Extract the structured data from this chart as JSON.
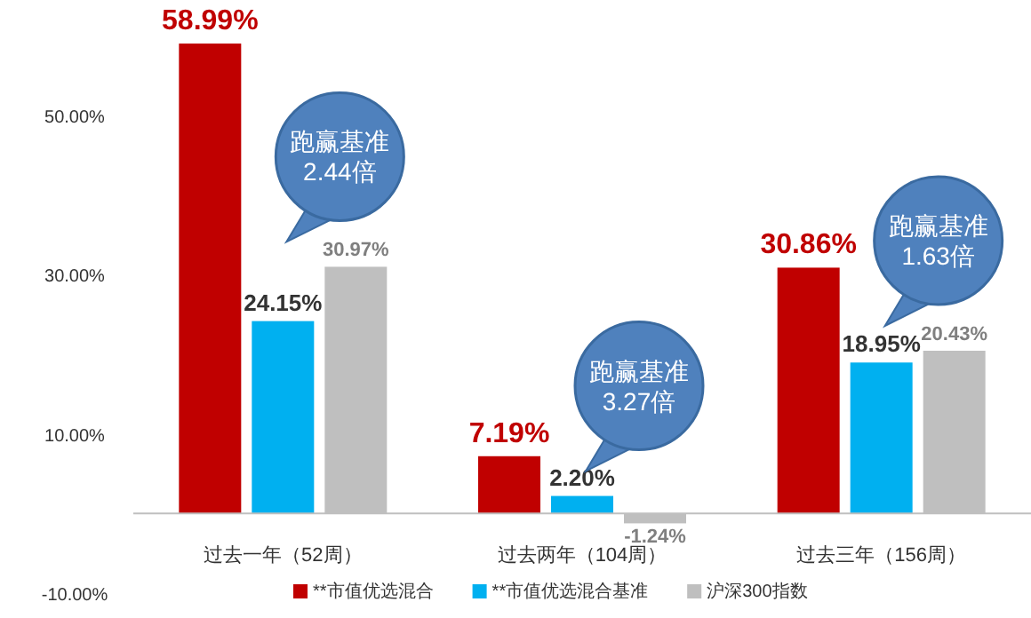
{
  "chart_data": {
    "type": "bar",
    "categories": [
      "过去一年（52周）",
      "过去两年（104周）",
      "过去三年（156周）"
    ],
    "series": [
      {
        "name": "**市值优选混合",
        "color": "#c00000",
        "values": [
          58.99,
          7.19,
          30.86
        ],
        "value_labels": [
          "58.99%",
          "7.19%",
          "30.86%"
        ]
      },
      {
        "name": "**市值优选混合基准",
        "color": "#00b0f0",
        "values": [
          24.15,
          2.2,
          18.95
        ],
        "value_labels": [
          "24.15%",
          "2.20%",
          "18.95%"
        ]
      },
      {
        "name": "沪深300指数",
        "color": "#bfbfbf",
        "values": [
          30.97,
          -1.24,
          20.43
        ],
        "value_labels": [
          "30.97%",
          "-1.24%",
          "20.43%"
        ]
      }
    ],
    "ylim": [
      -10,
      60
    ],
    "yticks": [
      {
        "value": -10,
        "label": "-10.00%"
      },
      {
        "value": 10,
        "label": "10.00%"
      },
      {
        "value": 30,
        "label": "30.00%"
      },
      {
        "value": 50,
        "label": "50.00%"
      }
    ],
    "annotations": [
      "跑赢基准\n2.44倍",
      "跑赢基准\n3.27倍",
      "跑赢基准\n1.63倍"
    ],
    "grid": false,
    "legend": "bottom"
  }
}
